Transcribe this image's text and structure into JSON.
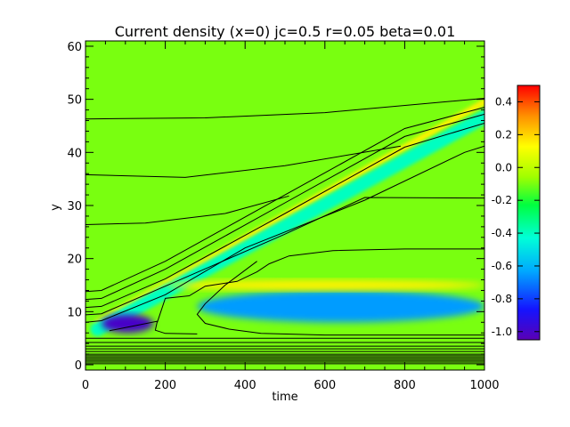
{
  "chart_data": {
    "type": "heatmap",
    "title": "Current density (x=0) jc=0.5 r=0.05 beta=0.01",
    "xlabel": "time",
    "ylabel": "y",
    "xlim": [
      0,
      1000
    ],
    "ylim": [
      -1,
      61
    ],
    "x_ticks": [
      0,
      200,
      400,
      600,
      800,
      1000
    ],
    "x_tick_labels": [
      "0",
      "200",
      "400",
      "600",
      "800",
      "1000"
    ],
    "y_ticks": [
      0,
      10,
      20,
      30,
      40,
      50,
      60
    ],
    "y_tick_labels": [
      "0",
      "10",
      "20",
      "30",
      "40",
      "50",
      "60"
    ],
    "colorbar": {
      "range": [
        -1.05,
        0.5
      ],
      "ticks": [
        0.4,
        0.2,
        0.0,
        -0.2,
        -0.4,
        -0.6,
        -0.8,
        -1.0
      ],
      "tick_labels": [
        "0.4",
        "0.2",
        "0.0",
        "-0.2",
        "-0.4",
        "-0.6",
        "-0.8",
        "-1.0"
      ],
      "colormap": "rainbow"
    },
    "background_value": -0.1,
    "features": [
      {
        "kind": "diagonal_band",
        "value": 0.15,
        "start": [
          30,
          8
        ],
        "end": [
          1000,
          49.5
        ],
        "width": 1.2
      },
      {
        "kind": "diagonal_band",
        "value": -0.4,
        "start": [
          30,
          6.7
        ],
        "end": [
          1000,
          46.7
        ],
        "width": 2.6
      },
      {
        "kind": "blob",
        "value": -1.0,
        "time_range": [
          40,
          170
        ],
        "y_range": [
          6,
          9.5
        ]
      },
      {
        "kind": "blob",
        "value": -0.65,
        "time_range": [
          280,
          1000
        ],
        "y_range": [
          8,
          14
        ]
      },
      {
        "kind": "band",
        "value": 0.15,
        "time_range": [
          200,
          1000
        ],
        "y_range": [
          14,
          16
        ]
      }
    ],
    "contours": [
      {
        "time": [
          0,
          300,
          600,
          1000
        ],
        "y": [
          46.3,
          46.5,
          47.5,
          50.2
        ]
      },
      {
        "time": [
          0,
          250,
          500,
          790
        ],
        "y": [
          35.8,
          35.3,
          37.5,
          41.2
        ]
      },
      {
        "time": [
          0,
          150,
          350,
          510
        ],
        "y": [
          26.4,
          26.7,
          28.5,
          31.8
        ]
      },
      {
        "time": [
          0,
          40,
          200,
          500,
          800,
          1000
        ],
        "y": [
          13.8,
          14.0,
          19.5,
          32.0,
          44.5,
          48.5
        ]
      },
      {
        "time": [
          0,
          40,
          200,
          500,
          800,
          1000
        ],
        "y": [
          12.3,
          12.5,
          18.0,
          30.5,
          43.0,
          47.2
        ]
      },
      {
        "time": [
          0,
          40,
          200,
          500,
          800,
          1000
        ],
        "y": [
          10.8,
          11.0,
          16.2,
          28.5,
          41.0,
          45.5
        ]
      },
      {
        "time": [
          0,
          40,
          200,
          500,
          700,
          1000
        ],
        "y": [
          9.4,
          9.6,
          14.8,
          24.6,
          31.5,
          31.4
        ]
      },
      {
        "time": [
          0,
          40,
          200,
          400,
          700,
          950,
          1000
        ],
        "y": [
          8.0,
          8.3,
          13.2,
          22.0,
          31.0,
          40.0,
          41.2
        ]
      },
      {
        "time": [
          180,
          200,
          260,
          300,
          380,
          430,
          460,
          510,
          620,
          800,
          1000
        ],
        "y": [
          8.0,
          12.5,
          13.0,
          14.8,
          15.7,
          17.5,
          19.0,
          20.5,
          21.5,
          21.8,
          21.8
        ]
      },
      {
        "time": [
          60,
          180,
          175,
          200,
          280
        ],
        "y": [
          6.4,
          8.2,
          6.5,
          5.9,
          5.8
        ]
      },
      {
        "time": [
          430,
          350,
          300,
          280,
          300,
          360,
          440,
          600,
          1000
        ],
        "y": [
          19.5,
          15.0,
          11.5,
          9.5,
          7.8,
          6.7,
          5.9,
          5.6,
          5.6
        ]
      }
    ],
    "near_wall_lines_y": [
      0.2,
      0.5,
      0.8,
      1.1,
      1.4,
      1.7,
      2.0,
      2.5,
      3.0,
      3.5,
      4.2,
      5.0
    ]
  }
}
